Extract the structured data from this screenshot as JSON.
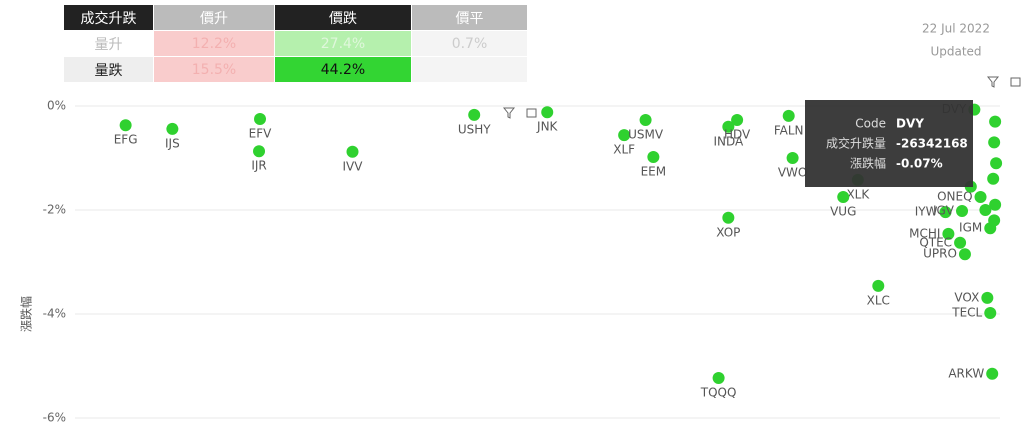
{
  "matrix": {
    "corner": "成交升跌",
    "columns": [
      "價升",
      "價跌",
      "價平"
    ],
    "rows": [
      {
        "label": "量升",
        "cells": [
          "12.2%",
          "27.4%",
          "0.7%"
        ]
      },
      {
        "label": "量跌",
        "cells": [
          "15.5%",
          "44.2%"
        ]
      }
    ]
  },
  "date": "22 Jul 2022",
  "updated": "Updated",
  "chart_data": {
    "type": "scatter",
    "y_label": "漲跌幅",
    "color": "#2fd12f",
    "grid": true,
    "xlim": [
      -950000000,
      0
    ],
    "ylim": [
      -6.3,
      0
    ],
    "yticks": [
      {
        "value": 0,
        "label": "0%"
      },
      {
        "value": -2,
        "label": "-2%"
      },
      {
        "value": -4,
        "label": "-4%"
      },
      {
        "value": -6,
        "label": "-6%"
      }
    ],
    "points": [
      {
        "name": "EFG",
        "x": -898000000,
        "y": -0.37
      },
      {
        "name": "IJS",
        "x": -850000000,
        "y": -0.44
      },
      {
        "name": "EFV",
        "x": -760000000,
        "y": -0.25
      },
      {
        "name": "IJR",
        "x": -761000000,
        "y": -0.87
      },
      {
        "name": "IVV",
        "x": -665000000,
        "y": -0.88
      },
      {
        "name": "USHY",
        "x": -540000000,
        "y": -0.17
      },
      {
        "name": "JNK",
        "x": -465000000,
        "y": -0.12
      },
      {
        "name": "XLF",
        "x": -386000000,
        "y": -0.56
      },
      {
        "name": "USMV",
        "x": -364000000,
        "y": -0.27
      },
      {
        "name": "EEM",
        "x": -356000000,
        "y": -0.98
      },
      {
        "name": "INDA",
        "x": -279000000,
        "y": -0.4
      },
      {
        "name": "HDV",
        "x": -270000000,
        "y": -0.27
      },
      {
        "name": "FALN",
        "x": -217000000,
        "y": -0.19
      },
      {
        "name": "VWO",
        "x": -213000000,
        "y": -1.0
      },
      {
        "name": "XLK",
        "x": -146000000,
        "y": -1.42
      },
      {
        "name": "VUG",
        "x": -161000000,
        "y": -1.75
      },
      {
        "name": "XOP",
        "x": -279000000,
        "y": -2.15
      },
      {
        "name": "XLC",
        "x": -125000000,
        "y": -3.46
      },
      {
        "name": "TQQQ",
        "x": -289000000,
        "y": -5.23
      },
      {
        "name": "IYW",
        "x": -56000000,
        "y": -2.04
      },
      {
        "name": "IGV",
        "x": -39000000,
        "y": -2.02
      },
      {
        "name": "MCHI",
        "x": -53000000,
        "y": -2.46
      },
      {
        "name": "QTEC",
        "x": -41000000,
        "y": -2.63
      },
      {
        "name": "UPRO",
        "x": -36000000,
        "y": -2.85
      },
      {
        "name": "IGM",
        "x": -10000000,
        "y": -2.35
      },
      {
        "name": "ONEQ",
        "x": -20000000,
        "y": -1.75
      },
      {
        "name": "VOX",
        "x": -13000000,
        "y": -3.69
      },
      {
        "name": "TECL",
        "x": -10000000,
        "y": -3.98
      },
      {
        "name": "ARKW",
        "x": -8000000,
        "y": -5.15
      },
      {
        "name": "DVY",
        "x": -26342168,
        "y": -0.07
      },
      {
        "name": null,
        "x": -5000000,
        "y": -0.3
      },
      {
        "name": null,
        "x": -6000000,
        "y": -0.7
      },
      {
        "name": null,
        "x": -4000000,
        "y": -1.1
      },
      {
        "name": null,
        "x": -30000000,
        "y": -1.55
      },
      {
        "name": null,
        "x": -7000000,
        "y": -1.4
      },
      {
        "name": null,
        "x": -5000000,
        "y": -1.9
      },
      {
        "name": null,
        "x": -15000000,
        "y": -2.0
      },
      {
        "name": null,
        "x": -6000000,
        "y": -2.2
      }
    ],
    "tooltip": [
      {
        "label": "Code",
        "value": "DVY"
      },
      {
        "label": "成交升跌量",
        "value": "-26342168"
      },
      {
        "label": "漲跌幅",
        "value": "-0.07%"
      }
    ]
  }
}
